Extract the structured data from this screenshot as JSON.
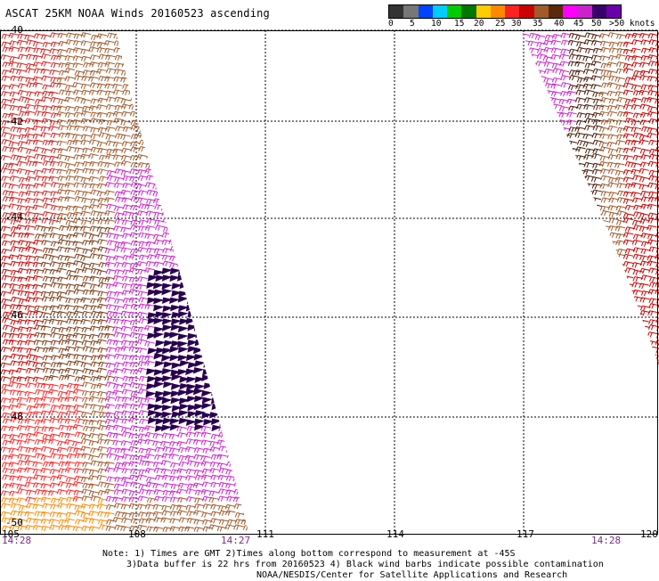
{
  "title": "ASCAT 25KM NOAA Winds 20160523 ascending",
  "legend": {
    "labels": [
      "0",
      "5",
      "10",
      "15",
      "20",
      "25",
      "30",
      "35",
      "40",
      "45",
      "50",
      ">50 knots"
    ],
    "colors": [
      "#333333",
      "#777777",
      "#0044ff",
      "#00ccff",
      "#00cc00",
      "#007700",
      "#ffcc00",
      "#ff8800",
      "#ff2222",
      "#cc0000",
      "#a05a2c",
      "#5a2a0a",
      "#ff00ff",
      "#cc22cc",
      "#3a006a",
      "#6a00aa"
    ]
  },
  "axes": {
    "lat_labels": [
      "-40",
      "-42",
      "-44",
      "-46",
      "-48",
      "-50"
    ],
    "lon_labels": [
      "105",
      "108",
      "111",
      "114",
      "117",
      "120"
    ]
  },
  "times": {
    "left": "14:28",
    "middle": "14:27",
    "right": "14:28"
  },
  "notes": {
    "line1": "Note: 1) Times are GMT 2)Times along bottom correspond to measurement at -45S",
    "line2": "3)Data buffer is 22 hrs from 20160523 4) Black wind barbs indicate possible contamination",
    "line3": "NOAA/NESDIS/Center for Satellite Applications and Research"
  },
  "swaths": [
    {
      "name": "western-swath"
    },
    {
      "name": "eastern-swath"
    }
  ]
}
